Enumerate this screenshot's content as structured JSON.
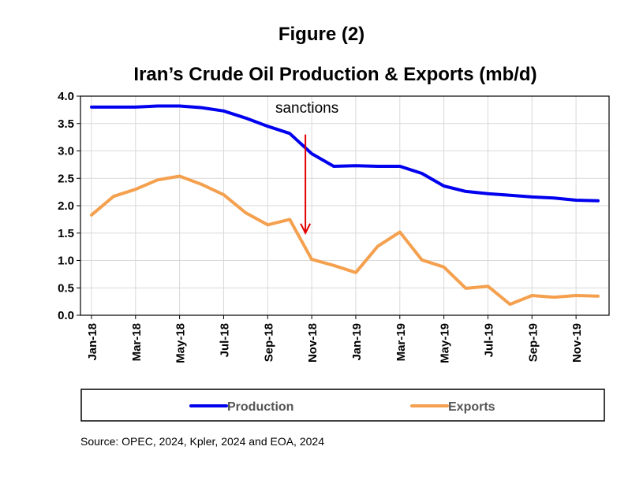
{
  "figure_label": "Figure (2)",
  "source": "Source: OPEC, 2024, Kpler, 2024 and EOA, 2024",
  "colors": {
    "production": "#0000ee",
    "exports": "#f4a04e",
    "arrow": "#e00000",
    "grid": "#d9d9d9"
  },
  "chart_data": {
    "type": "line",
    "title": "Iran’s Crude Oil Production & Exports (mb/d)",
    "xlabel": "",
    "ylabel": "",
    "ylim": [
      0,
      4
    ],
    "yticks": [
      "0.0",
      "0.5",
      "1.0",
      "1.5",
      "2.0",
      "2.5",
      "3.0",
      "3.5",
      "4.0"
    ],
    "x": [
      "Jan-18",
      "Feb-18",
      "Mar-18",
      "Apr-18",
      "May-18",
      "Jun-18",
      "Jul-18",
      "Aug-18",
      "Sep-18",
      "Oct-18",
      "Nov-18",
      "Dec-18",
      "Jan-19",
      "Feb-19",
      "Mar-19",
      "Apr-19",
      "May-19",
      "Jun-19",
      "Jul-19",
      "Aug-19",
      "Sep-19",
      "Oct-19",
      "Nov-19",
      "Dec-19"
    ],
    "xtick_labels": [
      "Jan-18",
      "Mar-18",
      "May-18",
      "Jul-18",
      "Sep-18",
      "Nov-18",
      "Jan-19",
      "Mar-19",
      "May-19",
      "Jul-19",
      "Sep-19",
      "Nov-19"
    ],
    "grid": true,
    "legend_position": "bottom",
    "series": [
      {
        "name": "Production",
        "values": [
          3.8,
          3.8,
          3.8,
          3.82,
          3.82,
          3.79,
          3.73,
          3.6,
          3.45,
          3.32,
          2.95,
          2.72,
          2.73,
          2.72,
          2.72,
          2.59,
          2.36,
          2.26,
          2.22,
          2.19,
          2.16,
          2.14,
          2.1,
          2.09
        ]
      },
      {
        "name": "Exports",
        "values": [
          1.83,
          2.17,
          2.3,
          2.47,
          2.54,
          2.39,
          2.2,
          1.87,
          1.65,
          1.75,
          1.02,
          0.91,
          0.78,
          1.26,
          1.52,
          1.01,
          0.88,
          0.49,
          0.53,
          0.2,
          0.36,
          0.33,
          0.36,
          0.35
        ]
      }
    ],
    "annotations": [
      {
        "text": "sanctions",
        "x": "Nov-18",
        "arrow_from": 3.3,
        "arrow_to": 1.5
      }
    ]
  }
}
